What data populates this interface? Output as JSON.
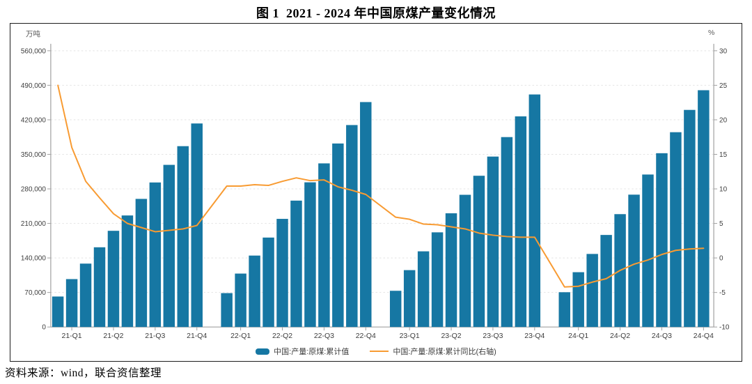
{
  "page": {
    "title": "图 1  2021 - 2024 年中国原煤产量变化情况",
    "source": "资料来源：wind，联合资信整理"
  },
  "chart_data": {
    "type": "bar+line",
    "title": "图 1  2021 - 2024 年中国原煤产量变化情况",
    "grid": "horizontal-dashed",
    "legend_position": "bottom",
    "left_axis": {
      "unit": "万吨",
      "min": 0,
      "max": 560000,
      "tick_step": 70000
    },
    "right_axis": {
      "unit": "%",
      "min": -10,
      "max": 30,
      "tick_step": 5
    },
    "x_axis": {
      "years": [
        "2021",
        "2022",
        "2023",
        "2024"
      ],
      "bars_per_year": 11,
      "quarter_labels": [
        "21-Q1",
        "21-Q2",
        "21-Q3",
        "21-Q4",
        "22-Q1",
        "22-Q2",
        "22-Q3",
        "22-Q4",
        "23-Q1",
        "23-Q2",
        "23-Q3",
        "23-Q4",
        "24-Q1",
        "24-Q2",
        "24-Q3",
        "24-Q4"
      ]
    },
    "series": [
      {
        "name": "中国:产量:原煤:累计值",
        "type": "bar",
        "axis": "left",
        "color": "#1677a3",
        "values_by_year": [
          [
            61800,
            97100,
            128500,
            161600,
            195000,
            226100,
            259700,
            293000,
            328700,
            366600,
            412600
          ],
          [
            68700,
            108300,
            144800,
            181300,
            219200,
            256200,
            293300,
            331700,
            372000,
            409400,
            456000
          ],
          [
            73400,
            115300,
            153400,
            191900,
            230500,
            268000,
            306600,
            345500,
            385000,
            427000,
            471400
          ],
          [
            70500,
            111100,
            148100,
            186600,
            228800,
            268300,
            309100,
            352300,
            394900,
            440100,
            480000
          ]
        ]
      },
      {
        "name": "中国:产量:原煤:累计同比(右轴)",
        "type": "line",
        "axis": "right",
        "color": "#f89b32",
        "values_by_year": [
          [
            25.0,
            16.0,
            11.1,
            8.7,
            6.4,
            5.0,
            4.4,
            3.8,
            4.0,
            4.2,
            4.7
          ],
          [
            10.4,
            10.4,
            10.6,
            10.5,
            11.1,
            11.6,
            11.2,
            11.3,
            10.3,
            9.8,
            9.2
          ],
          [
            5.9,
            5.6,
            4.9,
            4.8,
            4.5,
            4.2,
            3.6,
            3.3,
            3.1,
            3.0,
            3.0
          ],
          [
            -4.2,
            -4.1,
            -3.5,
            -3.0,
            -1.8,
            -0.9,
            -0.3,
            0.5,
            1.1,
            1.3,
            1.4
          ]
        ]
      }
    ],
    "colors": {
      "bar": "#1677a3",
      "line": "#f89b32",
      "gridline": "#e4e4e4",
      "axis": "#a0a0a0",
      "tick_text": "#3d3d3d"
    }
  }
}
